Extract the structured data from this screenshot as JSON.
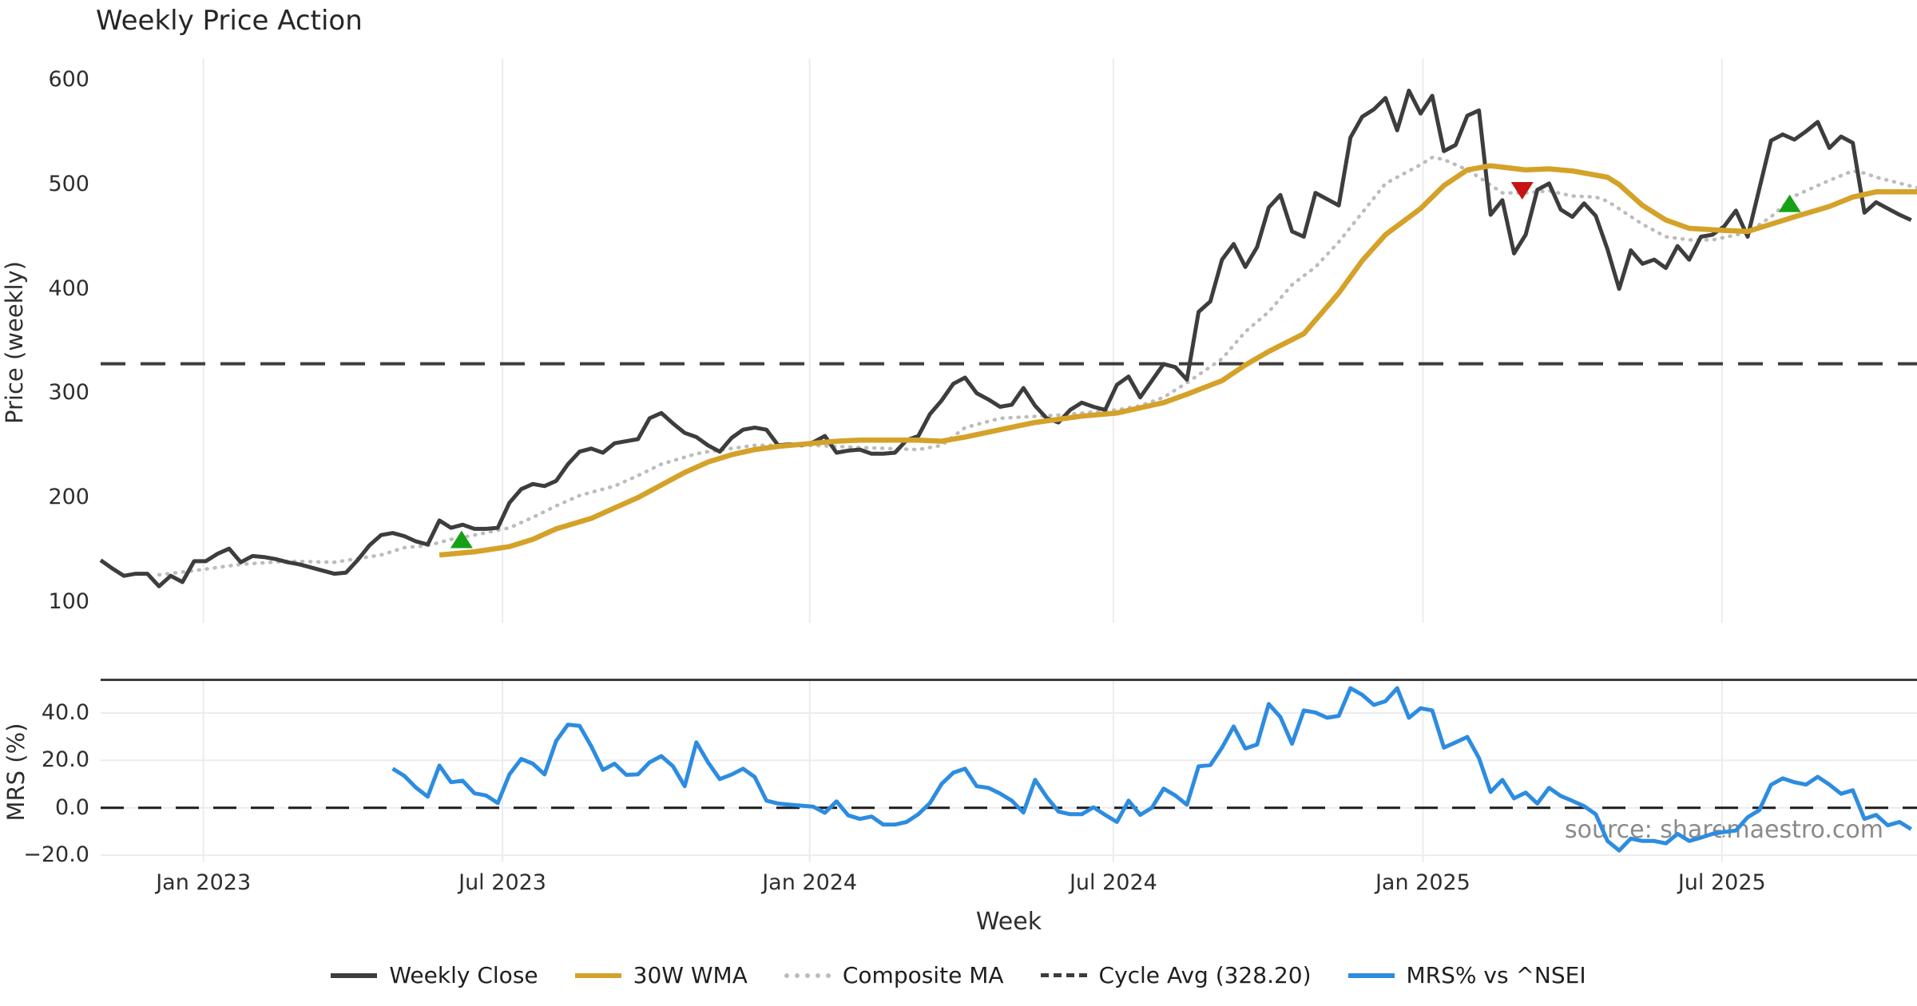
{
  "title": "Weekly Price Action",
  "source_note": "source: sharemaestro.com",
  "colors": {
    "background": "#ffffff",
    "grid": "#ececf0",
    "text": "#2e2e2e",
    "weekly_close": "#3d3d3d",
    "wma": "#d4a229",
    "composite": "#bcbcbc",
    "cycle_avg": "#3d3d3d",
    "mrs": "#2d8ce0",
    "buy_marker": "#16a016",
    "sell_marker": "#c61414",
    "source_text": "#8a8a8a",
    "separator": "#3d3d3d"
  },
  "x_axis": {
    "label": "Week",
    "lim": [
      0,
      155.5
    ],
    "ticks": [
      {
        "week": 8.8,
        "label": "Jan 2023"
      },
      {
        "week": 34.4,
        "label": "Jul 2023"
      },
      {
        "week": 60.7,
        "label": "Jan 2024"
      },
      {
        "week": 86.7,
        "label": "Jul 2024"
      },
      {
        "week": 113.2,
        "label": "Jan 2025"
      },
      {
        "week": 138.8,
        "label": "Jul 2025"
      }
    ]
  },
  "chart_data": [
    {
      "type": "line",
      "panel": "price",
      "ylabel": "Price (weekly)",
      "ylim": [
        80,
        621
      ],
      "grid": "vertical",
      "yticks": [
        {
          "value": 600,
          "label": "600"
        },
        {
          "value": 500,
          "label": "500"
        },
        {
          "value": 400,
          "label": "400"
        },
        {
          "value": 300,
          "label": "300"
        },
        {
          "value": 200,
          "label": "200"
        },
        {
          "value": 100,
          "label": "100"
        }
      ],
      "hline": {
        "name": "Cycle Avg (328.20)",
        "value": 328.2,
        "color": "#3d3d3d",
        "width": 4,
        "dash": "31 19"
      },
      "series": [
        {
          "name": "Composite MA",
          "slug": "composite-ma-line",
          "color": "#bcbcbc",
          "width": 4.5,
          "dash": "1 9",
          "cap": "round",
          "points": [
            [
              5,
              126
            ],
            [
              8,
              130
            ],
            [
              12,
              136
            ],
            [
              16,
              139
            ],
            [
              20,
              138
            ],
            [
              24,
              145
            ],
            [
              26,
              152
            ],
            [
              28,
              154
            ],
            [
              30,
              160
            ],
            [
              32,
              164
            ],
            [
              35,
              171
            ],
            [
              37,
              181
            ],
            [
              39,
              192
            ],
            [
              41,
              202
            ],
            [
              44,
              211
            ],
            [
              46,
              221
            ],
            [
              48,
              232
            ],
            [
              51,
              242
            ],
            [
              52,
              244
            ],
            [
              56,
              250
            ],
            [
              61,
              250
            ],
            [
              65,
              248
            ],
            [
              70,
              246
            ],
            [
              72,
              250
            ],
            [
              74,
              267
            ],
            [
              77,
              276
            ],
            [
              82,
              279
            ],
            [
              87,
              284
            ],
            [
              89,
              288
            ],
            [
              91,
              296
            ],
            [
              93,
              310
            ],
            [
              96,
              333
            ],
            [
              98,
              359
            ],
            [
              100,
              378
            ],
            [
              102,
              404
            ],
            [
              104,
              421
            ],
            [
              106,
              445
            ],
            [
              108,
              473
            ],
            [
              110,
              501
            ],
            [
              113,
              519
            ],
            [
              114,
              526
            ],
            [
              115,
              524
            ],
            [
              117,
              514
            ],
            [
              118,
              507
            ],
            [
              120,
              492
            ],
            [
              122,
              492
            ],
            [
              124,
              494
            ],
            [
              126,
              489
            ],
            [
              128,
              488
            ],
            [
              129,
              484
            ],
            [
              132,
              462
            ],
            [
              134,
              450
            ],
            [
              136,
              447
            ],
            [
              138,
              447
            ],
            [
              141,
              454
            ],
            [
              143,
              469
            ],
            [
              145,
              489
            ],
            [
              148,
              504
            ],
            [
              150,
              513
            ],
            [
              151,
              511
            ],
            [
              152,
              507
            ],
            [
              155.5,
              497
            ]
          ]
        },
        {
          "name": "Weekly Close",
          "slug": "weekly-close-line",
          "color": "#3d3d3d",
          "width": 5,
          "start_week": 0,
          "values": [
            140,
            132,
            125,
            127,
            127,
            115,
            125,
            119,
            139,
            139,
            146,
            151,
            138,
            144,
            143,
            141,
            138,
            136,
            133,
            130,
            127,
            128,
            140,
            154,
            164,
            166,
            163,
            158,
            155,
            178,
            171,
            174,
            170,
            170,
            171,
            195,
            208,
            213,
            211,
            216,
            232,
            244,
            247,
            243,
            252,
            254,
            256,
            276,
            281,
            271,
            262,
            258,
            250,
            244,
            257,
            265,
            267,
            265,
            250,
            251,
            250,
            253,
            259,
            243,
            245,
            246,
            242,
            242,
            243,
            255,
            259,
            280,
            293,
            309,
            315,
            300,
            294,
            287,
            289,
            305,
            288,
            276,
            272,
            284,
            291,
            287,
            284,
            308,
            316,
            296,
            312,
            328,
            325,
            313,
            378,
            388,
            428,
            443,
            421,
            440,
            478,
            490,
            455,
            450,
            492,
            486,
            480,
            545,
            565,
            572,
            583,
            552,
            590,
            568,
            585,
            532,
            538,
            566,
            571,
            471,
            485,
            434,
            452,
            495,
            501,
            476,
            469,
            482,
            470,
            438,
            400,
            437,
            424,
            428,
            420,
            441,
            428,
            450,
            452,
            460,
            475,
            450,
            496,
            542,
            548,
            543,
            551,
            560,
            535,
            546,
            540,
            473,
            483,
            477,
            471,
            466
          ]
        },
        {
          "name": "30W WMA",
          "slug": "wma-line",
          "color": "#d4a229",
          "width": 6.5,
          "points": [
            [
              29,
              145
            ],
            [
              32,
              148
            ],
            [
              35,
              153
            ],
            [
              37,
              160
            ],
            [
              39,
              170
            ],
            [
              42,
              180
            ],
            [
              44,
              190
            ],
            [
              46,
              200
            ],
            [
              48,
              212
            ],
            [
              50,
              224
            ],
            [
              52,
              234
            ],
            [
              54,
              241
            ],
            [
              56,
              246
            ],
            [
              58,
              249
            ],
            [
              61,
              252
            ],
            [
              63,
              254
            ],
            [
              65,
              255
            ],
            [
              68,
              255
            ],
            [
              70,
              255
            ],
            [
              72,
              254
            ],
            [
              74,
              258
            ],
            [
              77,
              265
            ],
            [
              80,
              272
            ],
            [
              82,
              275
            ],
            [
              84,
              278
            ],
            [
              87,
              281
            ],
            [
              89,
              286
            ],
            [
              91,
              291
            ],
            [
              93,
              299
            ],
            [
              96,
              312
            ],
            [
              98,
              327
            ],
            [
              100,
              340
            ],
            [
              103,
              357
            ],
            [
              106,
              396
            ],
            [
              108,
              427
            ],
            [
              110,
              452
            ],
            [
              113,
              477
            ],
            [
              115,
              499
            ],
            [
              117,
              514
            ],
            [
              119,
              518
            ],
            [
              122,
              514
            ],
            [
              124,
              515
            ],
            [
              126,
              513
            ],
            [
              129,
              507
            ],
            [
              130,
              500
            ],
            [
              132,
              480
            ],
            [
              134,
              466
            ],
            [
              136,
              458
            ],
            [
              139,
              456
            ],
            [
              141,
              455
            ],
            [
              143,
              462
            ],
            [
              145,
              469
            ],
            [
              148,
              479
            ],
            [
              150,
              488
            ],
            [
              152,
              493
            ],
            [
              155.5,
              493
            ]
          ]
        }
      ],
      "markers": [
        {
          "week": 30.9,
          "price": 160,
          "shape": "triangle-up",
          "color": "#16a016",
          "name": "buy-signal-marker"
        },
        {
          "week": 121.7,
          "price": 494,
          "shape": "triangle-down",
          "color": "#c61414",
          "name": "sell-signal-marker"
        },
        {
          "week": 144.6,
          "price": 482,
          "shape": "triangle-up",
          "color": "#16a016",
          "name": "buy-signal-marker"
        }
      ]
    },
    {
      "type": "line",
      "panel": "mrs",
      "ylabel": "MRS (%)",
      "ylim": [
        -23,
        54.5
      ],
      "grid": "both",
      "top_spine": true,
      "yticks": [
        {
          "value": 40,
          "label": "40.0"
        },
        {
          "value": 20,
          "label": "20.0"
        },
        {
          "value": 0,
          "label": "0.0"
        },
        {
          "value": -20,
          "label": "−20.0"
        }
      ],
      "hline": {
        "name": "zero-line",
        "value": 0,
        "color": "#1c1c1c",
        "width": 3,
        "dash": "29 18"
      },
      "series": [
        {
          "name": "MRS% vs ^NSEI",
          "slug": "mrs-line",
          "color": "#2d8ce0",
          "width": 5,
          "start_week": 25,
          "values": [
            16.5,
            13.5,
            8.5,
            4.7,
            17.8,
            10.8,
            11.4,
            6.1,
            5.2,
            2.0,
            14.1,
            20.6,
            18.6,
            14.1,
            28.2,
            35.1,
            34.6,
            26.0,
            16.0,
            18.6,
            13.9,
            14.1,
            19.2,
            21.8,
            17.5,
            9.1,
            27.6,
            19.2,
            12.1,
            14.0,
            16.5,
            13.0,
            3.0,
            1.8,
            1.3,
            0.9,
            0.5,
            -2.1,
            2.7,
            -3.2,
            -4.7,
            -3.7,
            -7.1,
            -7.1,
            -6.0,
            -2.7,
            2.0,
            10.1,
            14.8,
            16.5,
            9.1,
            8.4,
            6.0,
            3.0,
            -2.0,
            11.8,
            4.5,
            -1.6,
            -2.7,
            -2.7,
            0.2,
            -3.0,
            -6.0,
            3.0,
            -3.0,
            0.0,
            8.1,
            5.2,
            1.3,
            17.5,
            18.0,
            25.4,
            34.3,
            25.0,
            26.7,
            43.8,
            38.3,
            27.0,
            41.1,
            40.2,
            38.0,
            38.8,
            50.5,
            47.7,
            43.4,
            45.0,
            50.5,
            38.0,
            42.0,
            41.1,
            25.4,
            27.6,
            29.9,
            21.0,
            6.7,
            11.8,
            4.0,
            6.4,
            1.8,
            8.4,
            5.0,
            2.9,
            0.7,
            -2.7,
            -14.0,
            -18.0,
            -13.0,
            -14.0,
            -14.0,
            -15.0,
            -11.0,
            -14.0,
            -12.6,
            -11.0,
            -10.2,
            -9.6,
            -4.0,
            -1.0,
            9.7,
            12.4,
            10.8,
            9.8,
            13.1,
            9.8,
            5.9,
            7.4,
            -4.7,
            -3.0,
            -7.4,
            -6.0,
            -9.0
          ]
        }
      ],
      "markers": []
    }
  ],
  "legend": [
    {
      "label": "Weekly Close",
      "color": "#3d3d3d",
      "style": "solid"
    },
    {
      "label": "30W WMA",
      "color": "#d4a229",
      "style": "solid"
    },
    {
      "label": "Composite MA",
      "color": "#bcbcbc",
      "style": "dotted"
    },
    {
      "label": "Cycle Avg (328.20)",
      "color": "#3d3d3d",
      "style": "dashed"
    },
    {
      "label": "MRS% vs ^NSEI",
      "color": "#2d8ce0",
      "style": "solid"
    }
  ]
}
